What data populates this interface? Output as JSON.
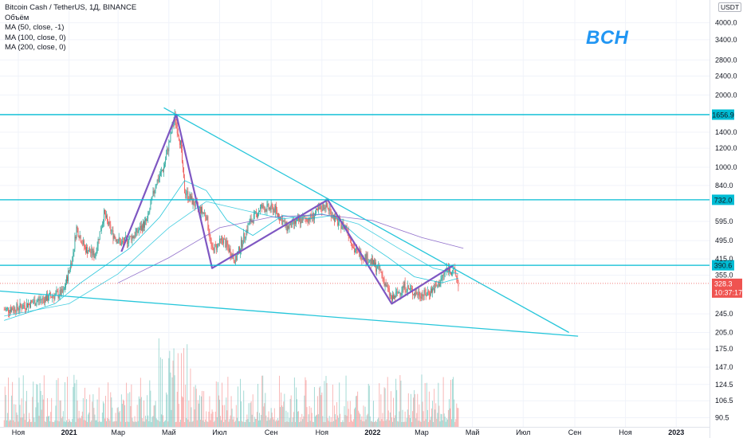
{
  "legend": {
    "symbol": "Bitcoin Cash / TetherUS, 1Д, BINANCE",
    "volume": "Объём",
    "ma1": "MA (50, close, -1)",
    "ma2": "MA (100, close, 0)",
    "ma3": "MA (200, close, 0)"
  },
  "ticker_label": "BCH",
  "currency_button": "USDT",
  "chart_data": {
    "type": "candlestick",
    "title": "Bitcoin Cash / TetherUS, 1Д, BINANCE",
    "y_scale": "log",
    "ylim": [
      78,
      4900
    ],
    "y_ticks": [
      4000.0,
      3400.0,
      2800.0,
      2400.0,
      2000.0,
      1400.0,
      1200.0,
      1000.0,
      840.0,
      595.0,
      495.0,
      415.0,
      355.0,
      245.0,
      205.0,
      175.0,
      147.0,
      124.5,
      106.5,
      90.5
    ],
    "y_tick_labels": [
      "4000.0",
      "3400.0",
      "2800.0",
      "2400.0",
      "2000.0",
      "1400.0",
      "1200.0",
      "1000.0",
      "840.0",
      "595.0",
      "495.0",
      "415.0",
      "355.0",
      "245.0",
      "205.0",
      "175.0",
      "147.0",
      "124.5",
      "106.5",
      "90.5"
    ],
    "x_tick_labels": [
      "Ноя",
      "2021",
      "Мар",
      "Май",
      "Июл",
      "Сен",
      "Ноя",
      "2022",
      "Мар",
      "Май",
      "Июл",
      "Сен",
      "Ноя",
      "2023"
    ],
    "x_tick_dates": [
      "2020-11-01",
      "2021-01-01",
      "2021-03-01",
      "2021-05-01",
      "2021-07-01",
      "2021-09-01",
      "2021-11-01",
      "2022-01-01",
      "2022-03-01",
      "2022-05-01",
      "2022-07-01",
      "2022-09-01",
      "2022-11-01",
      "2023-01-01"
    ],
    "x_range": [
      "2020-10-10",
      "2023-02-10"
    ],
    "horizontal_levels": [
      {
        "value": 1656.9,
        "label": "1656.9",
        "color": "#00bcd4"
      },
      {
        "value": 732.0,
        "label": "732.0",
        "color": "#00bcd4"
      },
      {
        "value": 390.6,
        "label": "390.6",
        "color": "#00bcd4"
      }
    ],
    "last_price": {
      "value": 328.3,
      "label": "328.3",
      "countdown": "10:37:17",
      "color": "#ef5350"
    },
    "price_path": [
      [
        "2020-10-15",
        255
      ],
      [
        "2020-11-01",
        260
      ],
      [
        "2020-11-20",
        275
      ],
      [
        "2020-12-10",
        290
      ],
      [
        "2020-12-25",
        300
      ],
      [
        "2021-01-05",
        420
      ],
      [
        "2021-01-10",
        560
      ],
      [
        "2021-01-20",
        460
      ],
      [
        "2021-02-01",
        430
      ],
      [
        "2021-02-12",
        640
      ],
      [
        "2021-02-22",
        530
      ],
      [
        "2021-03-05",
        480
      ],
      [
        "2021-03-20",
        520
      ],
      [
        "2021-04-05",
        600
      ],
      [
        "2021-04-15",
        850
      ],
      [
        "2021-04-25",
        1000
      ],
      [
        "2021-05-08",
        1620
      ],
      [
        "2021-05-15",
        1250
      ],
      [
        "2021-05-20",
        800
      ],
      [
        "2021-06-01",
        700
      ],
      [
        "2021-06-15",
        630
      ],
      [
        "2021-06-22",
        450
      ],
      [
        "2021-07-05",
        500
      ],
      [
        "2021-07-20",
        410
      ],
      [
        "2021-08-05",
        580
      ],
      [
        "2021-08-20",
        680
      ],
      [
        "2021-09-05",
        670
      ],
      [
        "2021-09-20",
        560
      ],
      [
        "2021-10-05",
        600
      ],
      [
        "2021-10-20",
        620
      ],
      [
        "2021-11-05",
        700
      ],
      [
        "2021-11-20",
        590
      ],
      [
        "2021-12-01",
        560
      ],
      [
        "2021-12-10",
        450
      ],
      [
        "2021-12-25",
        420
      ],
      [
        "2022-01-10",
        370
      ],
      [
        "2022-01-24",
        280
      ],
      [
        "2022-02-08",
        320
      ],
      [
        "2022-02-20",
        300
      ],
      [
        "2022-03-05",
        295
      ],
      [
        "2022-03-20",
        320
      ],
      [
        "2022-04-01",
        380
      ],
      [
        "2022-04-10",
        365
      ],
      [
        "2022-04-14",
        328.3
      ]
    ],
    "moving_averages": [
      {
        "name": "MA (50, close, -1)",
        "color": "#00bcd4",
        "points": [
          [
            "2020-10-15",
            230
          ],
          [
            "2020-12-15",
            270
          ],
          [
            "2021-01-15",
            330
          ],
          [
            "2021-03-15",
            460
          ],
          [
            "2021-04-20",
            620
          ],
          [
            "2021-05-20",
            880
          ],
          [
            "2021-06-15",
            800
          ],
          [
            "2021-07-10",
            600
          ],
          [
            "2021-08-10",
            520
          ],
          [
            "2021-09-15",
            630
          ],
          [
            "2021-10-15",
            610
          ],
          [
            "2021-11-15",
            630
          ],
          [
            "2021-12-15",
            510
          ],
          [
            "2022-01-20",
            420
          ],
          [
            "2022-02-20",
            350
          ],
          [
            "2022-03-25",
            330
          ],
          [
            "2022-04-14",
            345
          ]
        ]
      },
      {
        "name": "MA (100, close, 0)",
        "color": "#26c6da",
        "points": [
          [
            "2020-10-15",
            240
          ],
          [
            "2021-01-01",
            270
          ],
          [
            "2021-03-01",
            360
          ],
          [
            "2021-05-01",
            560
          ],
          [
            "2021-06-15",
            720
          ],
          [
            "2021-08-01",
            660
          ],
          [
            "2021-09-15",
            610
          ],
          [
            "2021-11-01",
            640
          ],
          [
            "2021-12-15",
            580
          ],
          [
            "2022-02-01",
            460
          ],
          [
            "2022-03-15",
            380
          ],
          [
            "2022-04-14",
            360
          ]
        ]
      },
      {
        "name": "MA (200, close, 0)",
        "color": "#7e57c2",
        "points": [
          [
            "2021-03-01",
            330
          ],
          [
            "2021-05-01",
            420
          ],
          [
            "2021-07-01",
            560
          ],
          [
            "2021-09-01",
            620
          ],
          [
            "2021-11-01",
            635
          ],
          [
            "2022-01-01",
            600
          ],
          [
            "2022-03-01",
            510
          ],
          [
            "2022-04-20",
            460
          ]
        ]
      }
    ],
    "pattern_lines": [
      {
        "color": "#7e57c2",
        "points": [
          [
            "2021-03-05",
            445
          ],
          [
            "2021-05-10",
            1656.9
          ],
          [
            "2021-06-22",
            380
          ],
          [
            "2021-11-08",
            732
          ],
          [
            "2022-01-24",
            270
          ],
          [
            "2022-04-08",
            390
          ]
        ]
      }
    ],
    "trend_lines": [
      {
        "color": "#26c6da",
        "points": [
          [
            "2021-04-25",
            1770
          ],
          [
            "2022-08-25",
            205
          ]
        ]
      },
      {
        "color": "#26c6da",
        "points": [
          [
            "2020-10-10",
            305
          ],
          [
            "2022-09-05",
            198
          ]
        ]
      }
    ],
    "volume_note": "volume bars along bottom"
  }
}
